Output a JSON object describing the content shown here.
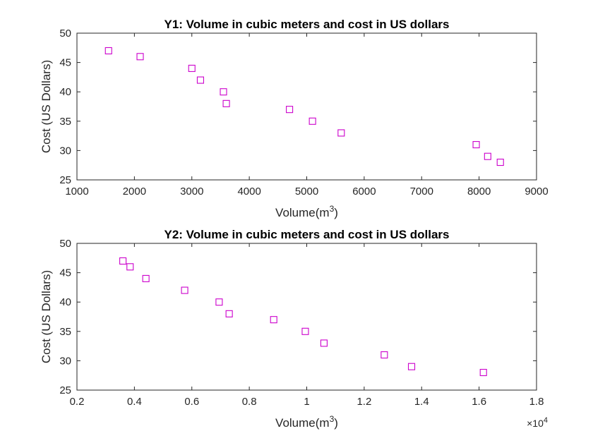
{
  "chart_data": [
    {
      "type": "scatter",
      "title": "Y1: Volume in cubic meters and cost in US dollars",
      "xlabel_base": "Volume(m",
      "xlabel_sup": "3",
      "xlabel_close": ")",
      "ylabel": "Cost (US Dollars)",
      "xlim": [
        1000,
        9000
      ],
      "ylim": [
        25,
        50
      ],
      "xticks": [
        1000,
        2000,
        3000,
        4000,
        5000,
        6000,
        7000,
        8000,
        9000
      ],
      "xtick_labels": [
        "1000",
        "2000",
        "3000",
        "4000",
        "5000",
        "6000",
        "7000",
        "8000",
        "9000"
      ],
      "yticks": [
        25,
        30,
        35,
        40,
        45,
        50
      ],
      "ytick_labels": [
        "25",
        "30",
        "35",
        "40",
        "45",
        "50"
      ],
      "grid": true,
      "marker": "square",
      "color": "#cc00cc",
      "series": [
        {
          "x": [
            1550,
            2100,
            3000,
            3150,
            3550,
            3600,
            4700,
            5100,
            5600,
            7950,
            8150,
            8370
          ],
          "y": [
            47,
            46,
            44,
            42,
            40,
            38,
            37,
            35,
            33,
            31,
            29,
            28
          ]
        }
      ]
    },
    {
      "type": "scatter",
      "title": "Y2: Volume in cubic meters and cost in US dollars",
      "xlabel_base": "Volume(m",
      "xlabel_sup": "3",
      "xlabel_close": ")",
      "ylabel": "Cost (US Dollars)",
      "xlim": [
        0.2,
        1.8
      ],
      "x_exponent_base": "×10",
      "x_exponent_power": "4",
      "ylim": [
        25,
        50
      ],
      "xticks": [
        0.2,
        0.4,
        0.6,
        0.8,
        1.0,
        1.2,
        1.4,
        1.6,
        1.8
      ],
      "xtick_labels": [
        "0.2",
        "0.4",
        "0.6",
        "0.8",
        "1",
        "1.2",
        "1.4",
        "1.6",
        "1.8"
      ],
      "yticks": [
        25,
        30,
        35,
        40,
        45,
        50
      ],
      "ytick_labels": [
        "25",
        "30",
        "35",
        "40",
        "45",
        "50"
      ],
      "grid": true,
      "marker": "square",
      "color": "#cc00cc",
      "series": [
        {
          "x": [
            0.36,
            0.385,
            0.44,
            0.575,
            0.695,
            0.73,
            0.885,
            0.995,
            1.06,
            1.27,
            1.365,
            1.615
          ],
          "y": [
            47,
            46,
            44,
            42,
            40,
            38,
            37,
            35,
            33,
            31,
            29,
            28
          ]
        }
      ]
    }
  ]
}
